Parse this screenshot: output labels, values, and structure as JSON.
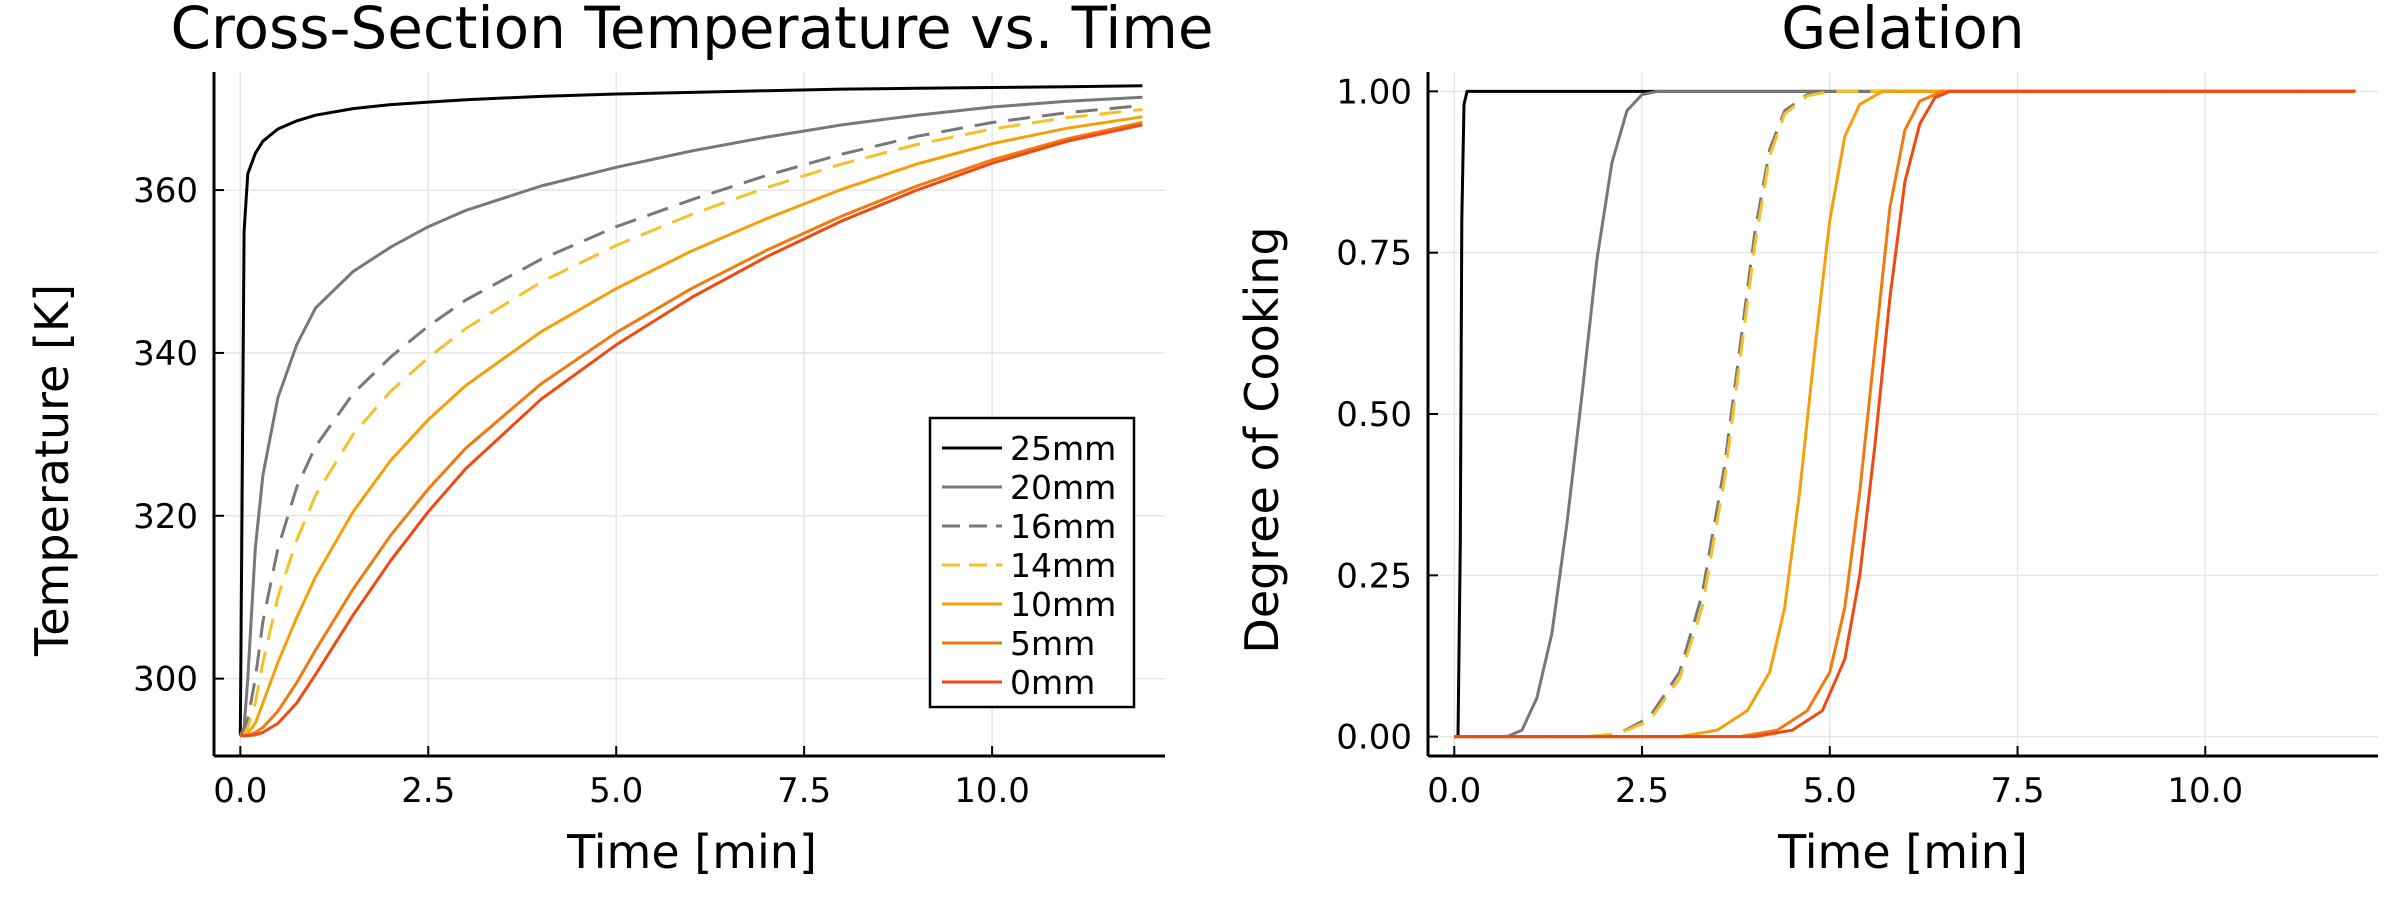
{
  "chart_data": [
    {
      "type": "line",
      "title": "Cross-Section Temperature vs. Time",
      "xlabel": "Time [min]",
      "ylabel": "Temperature [K]",
      "xlim": [
        -0.35,
        12.3
      ],
      "ylim": [
        290.5,
        374.5
      ],
      "xticks": [
        0,
        2.5,
        5,
        7.5,
        10
      ],
      "xtick_labels": [
        "0.0",
        "2.5",
        "5.0",
        "7.5",
        "10.0"
      ],
      "yticks": [
        300,
        320,
        340,
        360
      ],
      "ytick_labels": [
        "300",
        "320",
        "340",
        "360"
      ],
      "grid": true,
      "legend": "bottom-right",
      "x": [
        0,
        0.05,
        0.1,
        0.2,
        0.3,
        0.5,
        0.75,
        1,
        1.5,
        2,
        2.5,
        3,
        4,
        5,
        6,
        7,
        8,
        9,
        10,
        11,
        12
      ],
      "series": [
        {
          "name": "25mm",
          "color": "#000000",
          "dash": "solid",
          "values": [
            293,
            355,
            362,
            364.5,
            366,
            367.5,
            368.5,
            369.2,
            370,
            370.5,
            370.8,
            371.1,
            371.5,
            371.8,
            372,
            372.2,
            372.4,
            372.5,
            372.6,
            372.7,
            372.8
          ]
        },
        {
          "name": "20mm",
          "color": "#787878",
          "dash": "solid",
          "values": [
            293,
            294,
            300,
            316,
            325,
            334.5,
            341,
            345.5,
            350,
            353,
            355.5,
            357.5,
            360.5,
            362.8,
            364.8,
            366.5,
            368,
            369.2,
            370.2,
            370.9,
            371.4
          ]
        },
        {
          "name": "16mm",
          "color": "#787878",
          "dash": "dashed",
          "values": [
            293,
            293.2,
            295,
            300,
            307,
            316,
            323.5,
            328.5,
            335,
            339.5,
            343.3,
            346.5,
            351.5,
            355.5,
            358.8,
            361.8,
            364.4,
            366.6,
            368.3,
            369.5,
            370.4
          ]
        },
        {
          "name": "14mm",
          "color": "#F5C12A",
          "dash": "dashed",
          "values": [
            293,
            293.1,
            294,
            297,
            302,
            310,
            317,
            322.5,
            330,
            335.3,
            339.4,
            343,
            348.7,
            353.2,
            357,
            360.3,
            363.2,
            365.6,
            367.5,
            368.9,
            369.9
          ]
        },
        {
          "name": "10mm",
          "color": "#F5A00A",
          "dash": "solid",
          "values": [
            293,
            293,
            293.3,
            294.5,
            297,
            302,
            307.5,
            312.5,
            320.5,
            326.8,
            331.8,
            336,
            342.6,
            347.9,
            352.5,
            356.5,
            360.1,
            363.2,
            365.7,
            367.6,
            369
          ]
        },
        {
          "name": "5mm",
          "color": "#F07A10",
          "dash": "solid",
          "values": [
            293,
            293,
            293,
            293.4,
            294,
            296,
            299.5,
            303.5,
            311,
            317.6,
            323.3,
            328.3,
            336.2,
            342.5,
            347.9,
            352.6,
            356.8,
            360.5,
            363.7,
            366.3,
            368.3
          ]
        },
        {
          "name": "0mm",
          "color": "#F04A12",
          "dash": "solid",
          "values": [
            293,
            293,
            293,
            293.1,
            293.4,
            294.5,
            297,
            300.5,
            307.8,
            314.5,
            320.5,
            325.8,
            334.3,
            341,
            346.8,
            351.8,
            356.2,
            360,
            363.3,
            366,
            368
          ]
        }
      ]
    },
    {
      "type": "line",
      "title": "Gelation",
      "xlabel": "Time [min]",
      "ylabel": "Degree of Cooking",
      "xlim": [
        -0.35,
        12.3
      ],
      "ylim": [
        -0.03,
        1.03
      ],
      "xticks": [
        0,
        2.5,
        5,
        7.5,
        10
      ],
      "xtick_labels": [
        "0.0",
        "2.5",
        "5.0",
        "7.5",
        "10.0"
      ],
      "yticks": [
        0,
        0.25,
        0.5,
        0.75,
        1
      ],
      "ytick_labels": [
        "0.00",
        "0.25",
        "0.50",
        "0.75",
        "1.00"
      ],
      "grid": true,
      "series": [
        {
          "name": "25mm",
          "color": "#000000",
          "dash": "solid",
          "points": [
            [
              0,
              0
            ],
            [
              0.05,
              0
            ],
            [
              0.08,
              0.3
            ],
            [
              0.1,
              0.8
            ],
            [
              0.13,
              0.98
            ],
            [
              0.17,
              1
            ],
            [
              12,
              1
            ]
          ]
        },
        {
          "name": "20mm",
          "color": "#787878",
          "dash": "solid",
          "points": [
            [
              0,
              0
            ],
            [
              0.7,
              0
            ],
            [
              0.9,
              0.01
            ],
            [
              1.1,
              0.06
            ],
            [
              1.3,
              0.16
            ],
            [
              1.5,
              0.33
            ],
            [
              1.7,
              0.53
            ],
            [
              1.9,
              0.74
            ],
            [
              2.1,
              0.89
            ],
            [
              2.3,
              0.97
            ],
            [
              2.5,
              0.995
            ],
            [
              2.7,
              1
            ],
            [
              12,
              1
            ]
          ]
        },
        {
          "name": "16mm",
          "color": "#787878",
          "dash": "dashed",
          "points": [
            [
              0,
              0
            ],
            [
              1.8,
              0
            ],
            [
              2.2,
              0.005
            ],
            [
              2.6,
              0.03
            ],
            [
              3,
              0.1
            ],
            [
              3.3,
              0.22
            ],
            [
              3.6,
              0.42
            ],
            [
              3.8,
              0.6
            ],
            [
              4,
              0.78
            ],
            [
              4.2,
              0.91
            ],
            [
              4.4,
              0.97
            ],
            [
              4.7,
              0.995
            ],
            [
              5,
              1
            ],
            [
              12,
              1
            ]
          ]
        },
        {
          "name": "14mm",
          "color": "#F5C12A",
          "dash": "dashed",
          "points": [
            [
              0,
              0
            ],
            [
              1.8,
              0
            ],
            [
              2.2,
              0.005
            ],
            [
              2.6,
              0.025
            ],
            [
              3,
              0.09
            ],
            [
              3.3,
              0.2
            ],
            [
              3.6,
              0.4
            ],
            [
              3.8,
              0.58
            ],
            [
              4,
              0.76
            ],
            [
              4.2,
              0.9
            ],
            [
              4.4,
              0.965
            ],
            [
              4.7,
              0.993
            ],
            [
              5,
              1
            ],
            [
              12,
              1
            ]
          ]
        },
        {
          "name": "10mm",
          "color": "#F5A00A",
          "dash": "solid",
          "points": [
            [
              0,
              0
            ],
            [
              3,
              0
            ],
            [
              3.5,
              0.01
            ],
            [
              3.9,
              0.04
            ],
            [
              4.2,
              0.1
            ],
            [
              4.4,
              0.2
            ],
            [
              4.6,
              0.38
            ],
            [
              4.8,
              0.6
            ],
            [
              5,
              0.8
            ],
            [
              5.2,
              0.93
            ],
            [
              5.4,
              0.98
            ],
            [
              5.7,
              1
            ],
            [
              12,
              1
            ]
          ]
        },
        {
          "name": "5mm",
          "color": "#F07A10",
          "dash": "solid",
          "points": [
            [
              0,
              0
            ],
            [
              3.8,
              0
            ],
            [
              4.3,
              0.01
            ],
            [
              4.7,
              0.04
            ],
            [
              5,
              0.1
            ],
            [
              5.2,
              0.2
            ],
            [
              5.4,
              0.38
            ],
            [
              5.6,
              0.6
            ],
            [
              5.8,
              0.82
            ],
            [
              6,
              0.94
            ],
            [
              6.2,
              0.985
            ],
            [
              6.5,
              1
            ],
            [
              12,
              1
            ]
          ]
        },
        {
          "name": "0mm",
          "color": "#F04A12",
          "dash": "solid",
          "points": [
            [
              0,
              0
            ],
            [
              4,
              0
            ],
            [
              4.5,
              0.01
            ],
            [
              4.9,
              0.04
            ],
            [
              5.2,
              0.12
            ],
            [
              5.4,
              0.25
            ],
            [
              5.6,
              0.45
            ],
            [
              5.8,
              0.68
            ],
            [
              6,
              0.86
            ],
            [
              6.2,
              0.95
            ],
            [
              6.4,
              0.99
            ],
            [
              6.6,
              1
            ],
            [
              12,
              1
            ]
          ]
        }
      ]
    }
  ]
}
